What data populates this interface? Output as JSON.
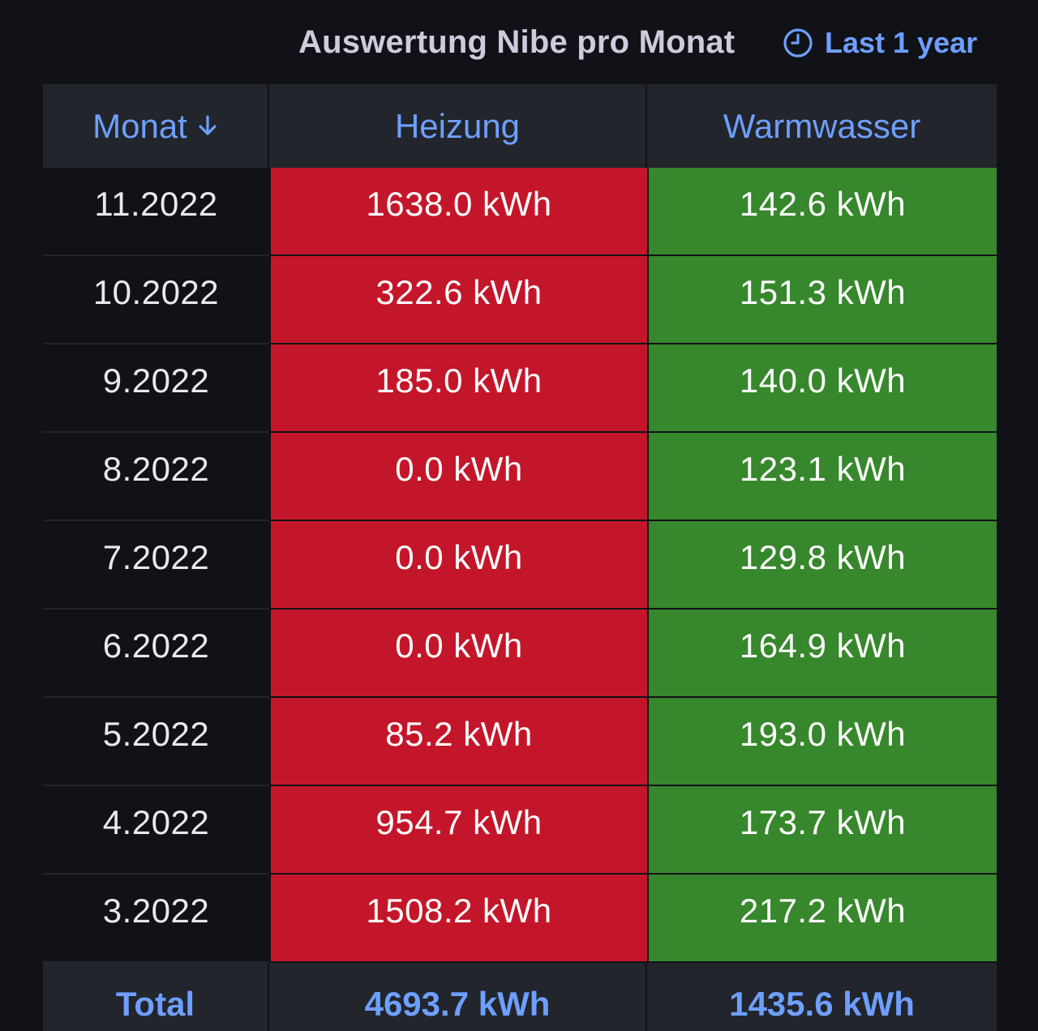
{
  "panel": {
    "title": "Auswertung Nibe pro Monat",
    "time_range": "Last 1 year",
    "time_icon": "clock-icon"
  },
  "table": {
    "columns": [
      "Monat",
      "Heizung",
      "Warmwasser"
    ],
    "sort_icon": "arrow-down-icon",
    "rows": [
      {
        "month": "11.2022",
        "heizung": "1638.0 kWh",
        "warmwasser": "142.6 kWh"
      },
      {
        "month": "10.2022",
        "heizung": "322.6 kWh",
        "warmwasser": "151.3 kWh"
      },
      {
        "month": "9.2022",
        "heizung": "185.0 kWh",
        "warmwasser": "140.0 kWh"
      },
      {
        "month": "8.2022",
        "heizung": "0.0 kWh",
        "warmwasser": "123.1 kWh"
      },
      {
        "month": "7.2022",
        "heizung": "0.0 kWh",
        "warmwasser": "129.8 kWh"
      },
      {
        "month": "6.2022",
        "heizung": "0.0 kWh",
        "warmwasser": "164.9 kWh"
      },
      {
        "month": "5.2022",
        "heizung": "85.2 kWh",
        "warmwasser": "193.0 kWh"
      },
      {
        "month": "4.2022",
        "heizung": "954.7 kWh",
        "warmwasser": "173.7 kWh"
      },
      {
        "month": "3.2022",
        "heizung": "1508.2 kWh",
        "warmwasser": "217.2 kWh"
      }
    ],
    "footer": {
      "label": "Total",
      "heizung": "4693.7 kWh",
      "warmwasser": "1435.6 kWh"
    }
  },
  "colors": {
    "background": "#111217",
    "header_bg": "#22252b",
    "accent_blue": "#6e9fff",
    "heizung_cell": "#c4162a",
    "warmwasser_cell": "#37872d"
  }
}
